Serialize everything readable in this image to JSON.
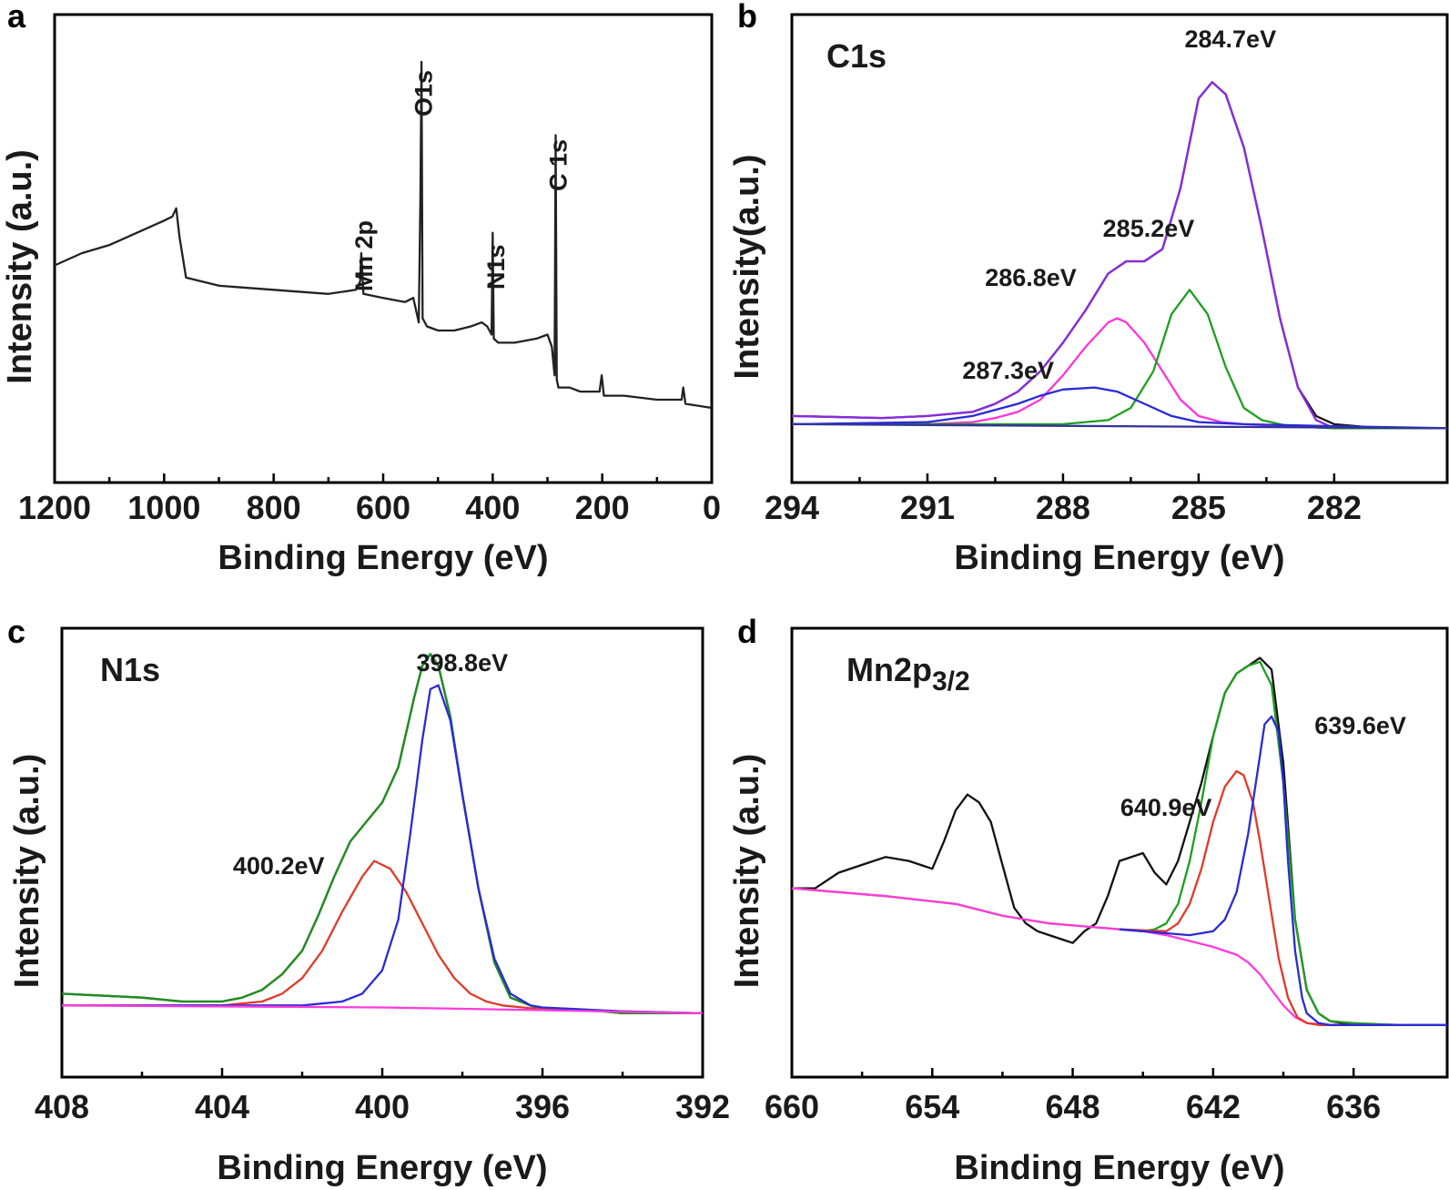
{
  "chart_data": [
    {
      "panel": "a",
      "type": "line",
      "title": "",
      "xlabel": "Binding Energy (eV)",
      "ylabel": "Intensity (a.u.)",
      "xlim": [
        1200,
        0
      ],
      "xticks": [
        1200,
        1000,
        800,
        600,
        400,
        200,
        0
      ],
      "ylim": [
        0,
        1
      ],
      "peak_labels": [
        {
          "text": "Mn 2p",
          "x": 640
        },
        {
          "text": "O1s",
          "x": 531
        },
        {
          "text": "N1s",
          "x": 399
        },
        {
          "text": "C 1s",
          "x": 285
        }
      ],
      "series": [
        {
          "color": "#222222",
          "x": [
            1200,
            1150,
            1100,
            1050,
            1000,
            985,
            978,
            972,
            960,
            900,
            800,
            700,
            650,
            642,
            640,
            636,
            600,
            560,
            545,
            535,
            532,
            530,
            528,
            520,
            500,
            470,
            440,
            420,
            410,
            402,
            400,
            398,
            390,
            360,
            320,
            300,
            292,
            287,
            285,
            283,
            280,
            260,
            240,
            205,
            201,
            197,
            160,
            100,
            55,
            52,
            48,
            0
          ],
          "y": [
            0.43,
            0.46,
            0.48,
            0.51,
            0.54,
            0.55,
            0.57,
            0.5,
            0.4,
            0.38,
            0.37,
            0.36,
            0.37,
            0.39,
            0.46,
            0.36,
            0.35,
            0.34,
            0.35,
            0.29,
            0.6,
            0.93,
            0.3,
            0.28,
            0.27,
            0.27,
            0.28,
            0.29,
            0.28,
            0.26,
            0.51,
            0.25,
            0.24,
            0.24,
            0.25,
            0.26,
            0.23,
            0.16,
            0.75,
            0.15,
            0.13,
            0.13,
            0.12,
            0.12,
            0.16,
            0.11,
            0.11,
            0.1,
            0.1,
            0.13,
            0.09,
            0.08
          ]
        }
      ]
    },
    {
      "panel": "b",
      "type": "line",
      "title": "C1s",
      "xlabel": "Binding Energy (eV)",
      "ylabel": "Intensity(a.u.)",
      "xlim": [
        294,
        279.5
      ],
      "xticks": [
        294,
        291,
        288,
        285,
        282
      ],
      "ylim": [
        0,
        1
      ],
      "peak_labels": [
        {
          "text": "284.7eV",
          "x": 284.7
        },
        {
          "text": "285.2eV",
          "x": 285.2
        },
        {
          "text": "286.8eV",
          "x": 286.8
        },
        {
          "text": "287.3eV",
          "x": 287.3
        }
      ],
      "series": [
        {
          "color": "#1a1a1a",
          "x": [
            294,
            292,
            291,
            290,
            289.5,
            289,
            288.5,
            288,
            287.5,
            287,
            286.6,
            286.2,
            285.8,
            285.4,
            285,
            284.7,
            284.4,
            284,
            283.6,
            283.2,
            282.8,
            282.4,
            282,
            281,
            280,
            279.5
          ],
          "y": [
            0.06,
            0.055,
            0.06,
            0.07,
            0.09,
            0.12,
            0.17,
            0.24,
            0.32,
            0.41,
            0.44,
            0.44,
            0.47,
            0.62,
            0.84,
            0.88,
            0.85,
            0.72,
            0.52,
            0.3,
            0.13,
            0.06,
            0.04,
            0.03,
            0.03,
            0.03
          ]
        },
        {
          "color": "#8a2be2",
          "x": [
            294,
            292,
            291,
            290,
            289.5,
            289,
            288.5,
            288,
            287.5,
            287,
            286.6,
            286.2,
            285.8,
            285.4,
            285,
            284.7,
            284.4,
            284,
            283.6,
            283.2,
            282.8,
            282.4,
            282,
            281,
            280,
            279.5
          ],
          "y": [
            0.06,
            0.055,
            0.06,
            0.07,
            0.09,
            0.12,
            0.17,
            0.24,
            0.32,
            0.41,
            0.44,
            0.44,
            0.47,
            0.62,
            0.84,
            0.88,
            0.85,
            0.72,
            0.52,
            0.3,
            0.13,
            0.05,
            0.03,
            0.03,
            0.03,
            0.03
          ]
        },
        {
          "color": "#ff33dd",
          "x": [
            294,
            291,
            290,
            289.5,
            289,
            288.5,
            288,
            287.5,
            287,
            286.8,
            286.6,
            286.2,
            285.8,
            285.4,
            285,
            284.5,
            284,
            283,
            282,
            279.5
          ],
          "y": [
            0.04,
            0.04,
            0.045,
            0.055,
            0.07,
            0.1,
            0.16,
            0.23,
            0.29,
            0.3,
            0.29,
            0.24,
            0.17,
            0.1,
            0.06,
            0.045,
            0.04,
            0.035,
            0.03,
            0.03
          ]
        },
        {
          "color": "#1f9e1f",
          "x": [
            294,
            288,
            287,
            286.5,
            286,
            285.6,
            285.2,
            284.8,
            284.4,
            284,
            283.6,
            283,
            282,
            279.5
          ],
          "y": [
            0.04,
            0.04,
            0.05,
            0.08,
            0.17,
            0.31,
            0.37,
            0.31,
            0.18,
            0.08,
            0.05,
            0.035,
            0.03,
            0.03
          ]
        },
        {
          "color": "#2929d9",
          "x": [
            294,
            291,
            290,
            289,
            288.5,
            288,
            287.3,
            286.8,
            286.2,
            285.6,
            285,
            284,
            282,
            279.5
          ],
          "y": [
            0.04,
            0.045,
            0.06,
            0.09,
            0.11,
            0.125,
            0.13,
            0.12,
            0.09,
            0.06,
            0.045,
            0.04,
            0.035,
            0.03
          ]
        },
        {
          "color": "#333399",
          "x": [
            294,
            279.5
          ],
          "y": [
            0.04,
            0.03
          ]
        }
      ]
    },
    {
      "panel": "c",
      "type": "line",
      "title": "N1s",
      "xlabel": "Binding Energy (eV)",
      "ylabel": "Intensity (a.u.)",
      "xlim": [
        408,
        392
      ],
      "xticks": [
        408,
        404,
        400,
        396,
        392
      ],
      "ylim": [
        0,
        1
      ],
      "peak_labels": [
        {
          "text": "398.8eV",
          "x": 398.8
        },
        {
          "text": "400.2eV",
          "x": 400.2
        }
      ],
      "series": [
        {
          "color": "#1a1a1a",
          "x": [
            408,
            406,
            405,
            404,
            403.5,
            403,
            402.5,
            402,
            401.6,
            401.2,
            400.8,
            400.4,
            400,
            399.6,
            399.2,
            399,
            398.8,
            398.6,
            398.3,
            398,
            397.6,
            397.2,
            396.8,
            396.3,
            396,
            395,
            394,
            393,
            392
          ],
          "y": [
            0.11,
            0.1,
            0.09,
            0.09,
            0.1,
            0.12,
            0.16,
            0.22,
            0.31,
            0.41,
            0.5,
            0.55,
            0.6,
            0.69,
            0.87,
            0.95,
            0.98,
            0.95,
            0.82,
            0.62,
            0.38,
            0.19,
            0.1,
            0.08,
            0.07,
            0.07,
            0.06,
            0.06,
            0.06
          ]
        },
        {
          "color": "#1f8f1f",
          "x": [
            408,
            406,
            405,
            404,
            403.5,
            403,
            402.5,
            402,
            401.6,
            401.2,
            400.8,
            400.4,
            400,
            399.6,
            399.2,
            399,
            398.8,
            398.6,
            398.3,
            398,
            397.6,
            397.2,
            396.8,
            396.3,
            396,
            395,
            394,
            393,
            392
          ],
          "y": [
            0.11,
            0.1,
            0.09,
            0.09,
            0.1,
            0.12,
            0.16,
            0.22,
            0.31,
            0.41,
            0.5,
            0.55,
            0.6,
            0.69,
            0.87,
            0.95,
            0.98,
            0.95,
            0.82,
            0.62,
            0.38,
            0.19,
            0.1,
            0.08,
            0.07,
            0.07,
            0.06,
            0.06,
            0.06
          ]
        },
        {
          "color": "#e03a2a",
          "x": [
            408,
            404,
            403,
            402.5,
            402,
            401.5,
            401,
            400.5,
            400.2,
            399.8,
            399.4,
            399,
            398.6,
            398.2,
            397.8,
            397.4,
            397,
            396.5,
            396,
            394,
            392
          ],
          "y": [
            0.08,
            0.08,
            0.09,
            0.11,
            0.15,
            0.22,
            0.32,
            0.41,
            0.45,
            0.43,
            0.37,
            0.29,
            0.21,
            0.15,
            0.11,
            0.09,
            0.08,
            0.075,
            0.07,
            0.065,
            0.06
          ]
        },
        {
          "color": "#2b2bd6",
          "x": [
            408,
            402,
            401,
            400.5,
            400,
            399.6,
            399.3,
            399,
            398.8,
            398.6,
            398.3,
            398,
            397.6,
            397.2,
            396.8,
            396.3,
            396,
            394,
            392
          ],
          "y": [
            0.08,
            0.08,
            0.09,
            0.11,
            0.17,
            0.3,
            0.52,
            0.76,
            0.89,
            0.9,
            0.81,
            0.62,
            0.38,
            0.2,
            0.11,
            0.08,
            0.075,
            0.065,
            0.06
          ]
        },
        {
          "color": "#ff3bdc",
          "x": [
            408,
            400,
            396,
            392
          ],
          "y": [
            0.08,
            0.075,
            0.068,
            0.06
          ]
        }
      ]
    },
    {
      "panel": "d",
      "type": "line",
      "title": "Mn2p3/2",
      "xlabel": "Binding Energy (eV)",
      "ylabel": "Intensity (a.u.)",
      "xlim": [
        660,
        632
      ],
      "xticks": [
        660,
        654,
        648,
        642,
        636
      ],
      "ylim": [
        0,
        1
      ],
      "peak_labels": [
        {
          "text": "639.6eV",
          "x": 639.6
        },
        {
          "text": "640.9eV",
          "x": 640.9
        }
      ],
      "series": [
        {
          "color": "#111111",
          "x": [
            660,
            659,
            658,
            657,
            656,
            655,
            654,
            653.5,
            653,
            652.5,
            652,
            651.5,
            651,
            650.5,
            650,
            649.5,
            649,
            648.5,
            648,
            647.5,
            647,
            646.5,
            646,
            645,
            644.5,
            644,
            643.5,
            643,
            642.5,
            642,
            641.5,
            641,
            640.5,
            640,
            639.5,
            639,
            638.5,
            638,
            637.5,
            637,
            636,
            635,
            634,
            633,
            632
          ],
          "y": [
            0.38,
            0.38,
            0.42,
            0.44,
            0.46,
            0.45,
            0.43,
            0.5,
            0.58,
            0.62,
            0.6,
            0.55,
            0.44,
            0.33,
            0.29,
            0.27,
            0.26,
            0.25,
            0.24,
            0.27,
            0.29,
            0.36,
            0.45,
            0.47,
            0.42,
            0.39,
            0.45,
            0.55,
            0.65,
            0.77,
            0.88,
            0.93,
            0.95,
            0.97,
            0.94,
            0.7,
            0.3,
            0.12,
            0.06,
            0.04,
            0.03,
            0.03,
            0.03,
            0.03,
            0.03
          ]
        },
        {
          "color": "#1f9e1f",
          "x": [
            660,
            656,
            653,
            651,
            650,
            649,
            648,
            647,
            646,
            645,
            644.5,
            644,
            643.5,
            643,
            642.5,
            642,
            641.5,
            641,
            640.5,
            640,
            639.5,
            639,
            638.5,
            638,
            637.5,
            637,
            636,
            634,
            632
          ],
          "y": [
            0.38,
            0.36,
            0.34,
            0.31,
            0.3,
            0.29,
            0.285,
            0.28,
            0.275,
            0.27,
            0.275,
            0.29,
            0.34,
            0.45,
            0.6,
            0.77,
            0.88,
            0.93,
            0.95,
            0.96,
            0.9,
            0.65,
            0.3,
            0.12,
            0.06,
            0.04,
            0.035,
            0.03,
            0.03
          ]
        },
        {
          "color": "#ff3bdc",
          "x": [
            660,
            656,
            653,
            651,
            650,
            649,
            648,
            647,
            646,
            645,
            644,
            643,
            642,
            641,
            640.5,
            640,
            639.5,
            639,
            638.5,
            638,
            637,
            636,
            634,
            632
          ],
          "y": [
            0.38,
            0.36,
            0.34,
            0.31,
            0.3,
            0.29,
            0.285,
            0.28,
            0.275,
            0.27,
            0.26,
            0.245,
            0.23,
            0.21,
            0.19,
            0.16,
            0.12,
            0.08,
            0.05,
            0.035,
            0.03,
            0.03,
            0.03,
            0.03
          ]
        },
        {
          "color": "#e03a2a",
          "x": [
            646,
            644,
            643.5,
            643,
            642.5,
            642,
            641.5,
            641,
            640.7,
            640.3,
            640,
            639.6,
            639.2,
            638.8,
            638.4,
            638,
            637.5,
            637,
            636,
            634,
            632
          ],
          "y": [
            0.275,
            0.27,
            0.29,
            0.34,
            0.43,
            0.55,
            0.64,
            0.68,
            0.67,
            0.6,
            0.5,
            0.35,
            0.2,
            0.1,
            0.05,
            0.035,
            0.03,
            0.03,
            0.03,
            0.03,
            0.03
          ]
        },
        {
          "color": "#2b2bd6",
          "x": [
            646,
            644,
            643,
            642,
            641.5,
            641,
            640.5,
            640,
            639.8,
            639.5,
            639.2,
            639,
            638.8,
            638.5,
            638.2,
            638,
            637.5,
            637,
            636,
            634,
            632
          ],
          "y": [
            0.275,
            0.265,
            0.26,
            0.27,
            0.3,
            0.37,
            0.52,
            0.72,
            0.8,
            0.82,
            0.78,
            0.65,
            0.45,
            0.22,
            0.1,
            0.06,
            0.035,
            0.03,
            0.03,
            0.03,
            0.03
          ]
        }
      ]
    }
  ]
}
